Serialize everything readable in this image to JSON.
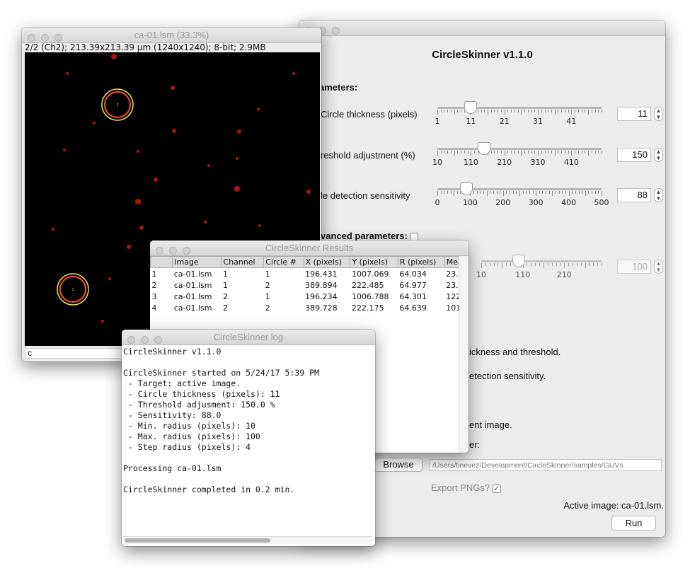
{
  "main": {
    "title": "CircleSkinner v1.1.0",
    "parameters_header": "ameters:",
    "circle_thickness": {
      "label": "Circle thickness (pixels)",
      "ticks": [
        "1",
        "11",
        "21",
        "31",
        "41"
      ],
      "value": "11",
      "min": 1,
      "max": 50,
      "pos": 11
    },
    "threshold": {
      "label": "reshold adjustment (%)",
      "ticks": [
        "10",
        "110",
        "210",
        "310",
        "410"
      ],
      "value": "150",
      "min": 10,
      "max": 500,
      "pos": 150
    },
    "sensitivity": {
      "label": "le detection sensitivity",
      "ticks": [
        "0",
        "100",
        "200",
        "300",
        "400",
        "500"
      ],
      "value": "88",
      "min": 0,
      "max": 500,
      "pos": 88
    },
    "advanced_header": "vanced parameters:",
    "advanced_slider": {
      "ticks": [
        "10",
        "110",
        "210"
      ],
      "value": "100"
    },
    "hint1": "ickness and threshold.",
    "hint2": "etection sensitivity.",
    "hint3": "ent image.",
    "hint4": "er:",
    "browse_label": "Browse",
    "path_value": "/Users/tinevez/Development/CircleSkinner/samples/GUVs",
    "export_label": "Export PNGs?",
    "export_checked": "✓",
    "active_image": "Active image: ca-01.lsm.",
    "run_label": "Run"
  },
  "image_window": {
    "title": "ca-01.lsm (33.3%)",
    "info": "2/2 (Ch2); 213.39x213.39 µm (1240x1240); 8-bit; 2.9MB",
    "status": "c",
    "circle_labels": [
      "2",
      "1"
    ]
  },
  "results": {
    "title": "CircleSkinner Results",
    "columns": [
      "",
      "Image",
      "Channel",
      "Circle #",
      "X (pixels)",
      "Y (pixels)",
      "R (pixels)",
      "Mea"
    ],
    "rows": [
      [
        "1",
        "ca-01.lsm",
        "1",
        "1",
        "196.431",
        "1007.069",
        "64.034",
        "23."
      ],
      [
        "2",
        "ca-01.lsm",
        "1",
        "2",
        "389.894",
        "222.485",
        "64.977",
        "23."
      ],
      [
        "3",
        "ca-01.lsm",
        "2",
        "1",
        "196.234",
        "1006.788",
        "64.301",
        "122"
      ],
      [
        "4",
        "ca-01.lsm",
        "2",
        "2",
        "389.728",
        "222.175",
        "64.639",
        "101"
      ]
    ]
  },
  "log": {
    "title": "CircleSkinner log",
    "lines": [
      "CircleSkinner v1.1.0",
      "",
      "CircleSkinner started on 5/24/17 5:39 PM",
      " - Target: active image.",
      " - Circle thickness (pixels): 11",
      " - Threshold adjusment: 150.0 %",
      " - Sensitivity: 88.0",
      " - Min. radius (pixels): 10",
      " - Max. radius (pixels): 100",
      " - Step radius (pixels): 4",
      "",
      "Processing ca-01.lsm",
      "",
      "CircleSkinner completed in 0.2 min."
    ]
  },
  "colors": {
    "window_bg": "#ececec",
    "image_bg": "#000000",
    "spot_red": "#d21414",
    "circle_yellow": "#e6e64a"
  }
}
